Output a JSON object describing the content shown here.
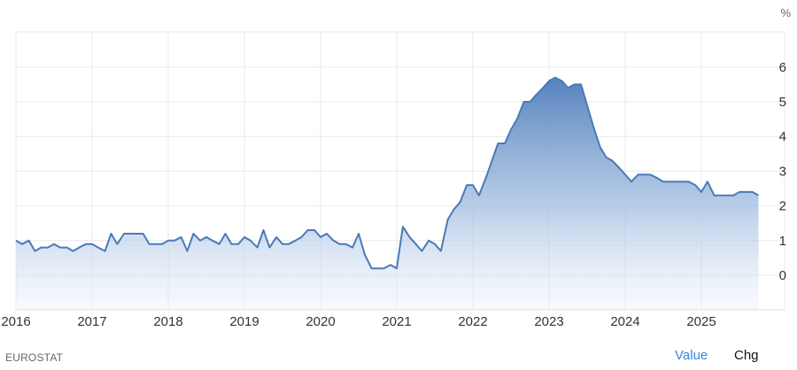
{
  "chart_data": {
    "type": "area",
    "unit": "%",
    "ylim": [
      -1,
      7
    ],
    "y_ticks": [
      0,
      1,
      2,
      3,
      4,
      5,
      6
    ],
    "x_range": [
      2016.0,
      2026.0
    ],
    "x_ticks": [
      "2016",
      "2017",
      "2018",
      "2019",
      "2020",
      "2021",
      "2022",
      "2023",
      "2024",
      "2025"
    ],
    "grid": true,
    "series": [
      {
        "color": "#4a7ab8",
        "points": [
          [
            2016.0,
            1.0
          ],
          [
            2016.08,
            0.9
          ],
          [
            2016.17,
            1.0
          ],
          [
            2016.25,
            0.7
          ],
          [
            2016.33,
            0.8
          ],
          [
            2016.42,
            0.8
          ],
          [
            2016.5,
            0.9
          ],
          [
            2016.58,
            0.8
          ],
          [
            2016.67,
            0.8
          ],
          [
            2016.75,
            0.7
          ],
          [
            2016.83,
            0.8
          ],
          [
            2016.92,
            0.9
          ],
          [
            2017.0,
            0.9
          ],
          [
            2017.08,
            0.8
          ],
          [
            2017.17,
            0.7
          ],
          [
            2017.25,
            1.2
          ],
          [
            2017.33,
            0.9
          ],
          [
            2017.42,
            1.2
          ],
          [
            2017.5,
            1.2
          ],
          [
            2017.58,
            1.2
          ],
          [
            2017.67,
            1.2
          ],
          [
            2017.75,
            0.9
          ],
          [
            2017.83,
            0.9
          ],
          [
            2017.92,
            0.9
          ],
          [
            2018.0,
            1.0
          ],
          [
            2018.08,
            1.0
          ],
          [
            2018.17,
            1.1
          ],
          [
            2018.25,
            0.7
          ],
          [
            2018.33,
            1.2
          ],
          [
            2018.42,
            1.0
          ],
          [
            2018.5,
            1.1
          ],
          [
            2018.58,
            1.0
          ],
          [
            2018.67,
            0.9
          ],
          [
            2018.75,
            1.2
          ],
          [
            2018.83,
            0.9
          ],
          [
            2018.92,
            0.9
          ],
          [
            2019.0,
            1.1
          ],
          [
            2019.08,
            1.0
          ],
          [
            2019.17,
            0.8
          ],
          [
            2019.25,
            1.3
          ],
          [
            2019.33,
            0.8
          ],
          [
            2019.42,
            1.1
          ],
          [
            2019.5,
            0.9
          ],
          [
            2019.58,
            0.9
          ],
          [
            2019.67,
            1.0
          ],
          [
            2019.75,
            1.1
          ],
          [
            2019.83,
            1.3
          ],
          [
            2019.92,
            1.3
          ],
          [
            2020.0,
            1.1
          ],
          [
            2020.08,
            1.2
          ],
          [
            2020.17,
            1.0
          ],
          [
            2020.25,
            0.9
          ],
          [
            2020.33,
            0.9
          ],
          [
            2020.42,
            0.8
          ],
          [
            2020.5,
            1.2
          ],
          [
            2020.58,
            0.6
          ],
          [
            2020.67,
            0.2
          ],
          [
            2020.75,
            0.2
          ],
          [
            2020.83,
            0.2
          ],
          [
            2020.92,
            0.3
          ],
          [
            2021.0,
            0.2
          ],
          [
            2021.08,
            1.4
          ],
          [
            2021.17,
            1.1
          ],
          [
            2021.25,
            0.9
          ],
          [
            2021.33,
            0.7
          ],
          [
            2021.42,
            1.0
          ],
          [
            2021.5,
            0.9
          ],
          [
            2021.58,
            0.7
          ],
          [
            2021.67,
            1.6
          ],
          [
            2021.75,
            1.9
          ],
          [
            2021.83,
            2.1
          ],
          [
            2021.92,
            2.6
          ],
          [
            2022.0,
            2.6
          ],
          [
            2022.08,
            2.3
          ],
          [
            2022.17,
            2.8
          ],
          [
            2022.25,
            3.3
          ],
          [
            2022.33,
            3.8
          ],
          [
            2022.42,
            3.8
          ],
          [
            2022.5,
            4.2
          ],
          [
            2022.58,
            4.5
          ],
          [
            2022.67,
            5.0
          ],
          [
            2022.75,
            5.0
          ],
          [
            2022.83,
            5.2
          ],
          [
            2022.92,
            5.4
          ],
          [
            2023.0,
            5.6
          ],
          [
            2023.08,
            5.7
          ],
          [
            2023.17,
            5.6
          ],
          [
            2023.25,
            5.4
          ],
          [
            2023.33,
            5.5
          ],
          [
            2023.42,
            5.5
          ],
          [
            2023.5,
            4.9
          ],
          [
            2023.58,
            4.3
          ],
          [
            2023.67,
            3.7
          ],
          [
            2023.75,
            3.4
          ],
          [
            2023.83,
            3.3
          ],
          [
            2023.92,
            3.1
          ],
          [
            2024.0,
            2.9
          ],
          [
            2024.08,
            2.7
          ],
          [
            2024.17,
            2.9
          ],
          [
            2024.25,
            2.9
          ],
          [
            2024.33,
            2.9
          ],
          [
            2024.42,
            2.8
          ],
          [
            2024.5,
            2.7
          ],
          [
            2024.58,
            2.7
          ],
          [
            2024.67,
            2.7
          ],
          [
            2024.75,
            2.7
          ],
          [
            2024.83,
            2.7
          ],
          [
            2024.92,
            2.6
          ],
          [
            2025.0,
            2.4
          ],
          [
            2025.08,
            2.7
          ],
          [
            2025.17,
            2.3
          ],
          [
            2025.25,
            2.3
          ],
          [
            2025.33,
            2.3
          ],
          [
            2025.42,
            2.3
          ],
          [
            2025.5,
            2.4
          ],
          [
            2025.58,
            2.4
          ],
          [
            2025.67,
            2.4
          ],
          [
            2025.75,
            2.3
          ]
        ]
      }
    ]
  },
  "footer": {
    "source": "EUROSTAT",
    "tab_value": "Value",
    "tab_chg": "Chg"
  },
  "colors": {
    "line": "#4a7ab8",
    "tab_active": "#3a87d6",
    "grid": "#e9e9e9"
  }
}
